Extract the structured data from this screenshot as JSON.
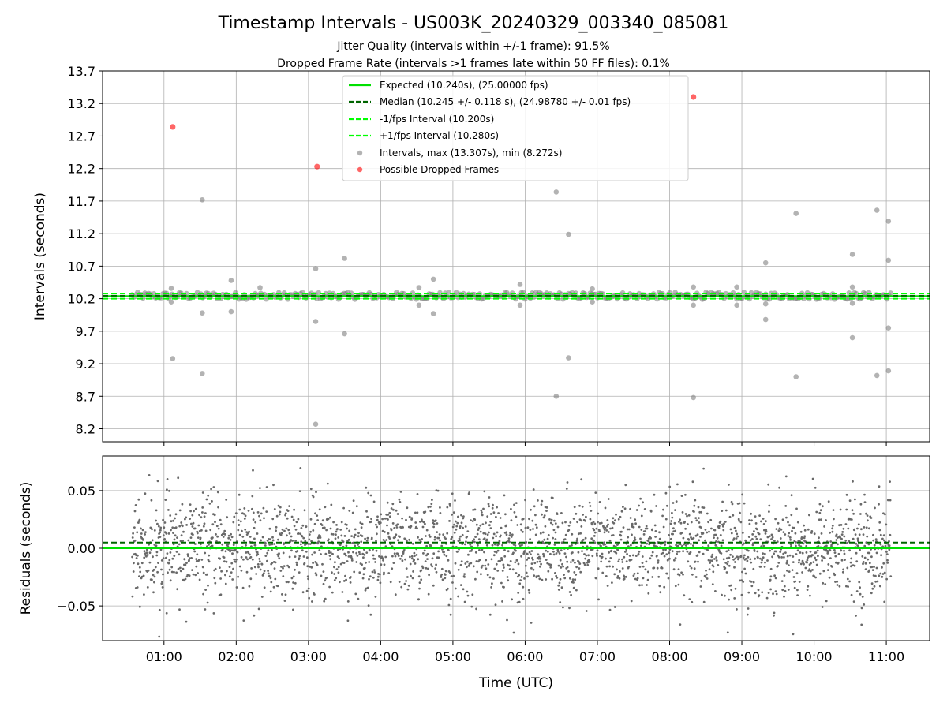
{
  "chart_data": [
    {
      "type": "scatter",
      "title": "Timestamp Intervals - US003K_20240329_003340_085081",
      "subtitle_lines": [
        "Jitter Quality (intervals within +/-1 frame): 91.5%",
        "Dropped Frame Rate (intervals >1 frames late within 50 FF files): 0.1%"
      ],
      "xlabel": "",
      "ylabel": "Intervals (seconds)",
      "xlim_hours": [
        0.15,
        11.6
      ],
      "ylim": [
        8.0,
        13.7
      ],
      "yticks": [
        "8.2",
        "8.7",
        "9.2",
        "9.7",
        "10.2",
        "10.7",
        "11.2",
        "11.7",
        "12.2",
        "12.7",
        "13.2",
        "13.7"
      ],
      "grid": true,
      "legend_position": "top-center",
      "legend": [
        "Expected (10.240s), (25.00000 fps)",
        "Median (10.245 +/- 0.118 s), (24.98780 +/- 0.01 fps)",
        "-1/fps Interval (10.200s)",
        "+1/fps Interval (10.280s)",
        "Intervals, max (13.307s), min (8.272s)",
        "Possible Dropped Frames"
      ],
      "reference_lines": {
        "expected": 10.24,
        "median": 10.245,
        "minus_one_fps": 10.2,
        "plus_one_fps": 10.28
      },
      "interval_range": {
        "start_hours": 0.56,
        "end_hours": 11.06,
        "typical_min": 10.19,
        "typical_max": 10.3
      },
      "outliers": [
        {
          "t": 1.1,
          "v": 10.36
        },
        {
          "t": 1.1,
          "v": 10.15
        },
        {
          "t": 1.12,
          "v": 9.28
        },
        {
          "t": 1.53,
          "v": 11.72
        },
        {
          "t": 1.53,
          "v": 9.98
        },
        {
          "t": 1.53,
          "v": 9.05
        },
        {
          "t": 1.93,
          "v": 10.48
        },
        {
          "t": 1.93,
          "v": 10.0
        },
        {
          "t": 2.33,
          "v": 10.37
        },
        {
          "t": 3.1,
          "v": 10.66
        },
        {
          "t": 3.1,
          "v": 9.85
        },
        {
          "t": 3.1,
          "v": 8.27
        },
        {
          "t": 3.5,
          "v": 10.82
        },
        {
          "t": 3.5,
          "v": 9.66
        },
        {
          "t": 4.53,
          "v": 10.37
        },
        {
          "t": 4.53,
          "v": 10.1
        },
        {
          "t": 4.73,
          "v": 10.5
        },
        {
          "t": 4.73,
          "v": 9.97
        },
        {
          "t": 5.93,
          "v": 10.42
        },
        {
          "t": 5.93,
          "v": 10.1
        },
        {
          "t": 6.43,
          "v": 11.84
        },
        {
          "t": 6.43,
          "v": 8.7
        },
        {
          "t": 6.6,
          "v": 11.19
        },
        {
          "t": 6.6,
          "v": 9.29
        },
        {
          "t": 6.93,
          "v": 10.35
        },
        {
          "t": 6.93,
          "v": 10.15
        },
        {
          "t": 8.33,
          "v": 10.38
        },
        {
          "t": 8.33,
          "v": 10.1
        },
        {
          "t": 8.33,
          "v": 8.68
        },
        {
          "t": 8.93,
          "v": 10.38
        },
        {
          "t": 8.93,
          "v": 10.1
        },
        {
          "t": 9.33,
          "v": 10.75
        },
        {
          "t": 9.33,
          "v": 10.12
        },
        {
          "t": 9.33,
          "v": 9.88
        },
        {
          "t": 9.75,
          "v": 11.51
        },
        {
          "t": 9.75,
          "v": 9.0
        },
        {
          "t": 10.53,
          "v": 10.88
        },
        {
          "t": 10.53,
          "v": 10.38
        },
        {
          "t": 10.53,
          "v": 10.13
        },
        {
          "t": 10.53,
          "v": 9.6
        },
        {
          "t": 10.87,
          "v": 11.56
        },
        {
          "t": 10.87,
          "v": 9.02
        },
        {
          "t": 11.03,
          "v": 11.39
        },
        {
          "t": 11.03,
          "v": 10.79
        },
        {
          "t": 11.03,
          "v": 9.75
        },
        {
          "t": 11.03,
          "v": 9.09
        }
      ],
      "dropped_frames": [
        {
          "t": 1.12,
          "v": 12.84
        },
        {
          "t": 3.12,
          "v": 12.23
        },
        {
          "t": 8.33,
          "v": 13.3
        }
      ],
      "colors": {
        "expected": "#00e000",
        "median": "#006400",
        "fps_bounds": "#00ff00",
        "intervals": "#808080",
        "dropped": "#ff0000"
      }
    },
    {
      "type": "scatter",
      "xlabel": "Time (UTC)",
      "ylabel": "Residuals (seconds)",
      "xlim_hours": [
        0.15,
        11.6
      ],
      "ylim": [
        -0.08,
        0.08
      ],
      "yticks": [
        "−0.05",
        "0.00",
        "0.05"
      ],
      "ytick_values": [
        -0.05,
        0.0,
        0.05
      ],
      "xticks": [
        "01:00",
        "02:00",
        "03:00",
        "04:00",
        "05:00",
        "06:00",
        "07:00",
        "08:00",
        "09:00",
        "10:00",
        "11:00"
      ],
      "xtick_hours": [
        1,
        2,
        3,
        4,
        5,
        6,
        7,
        8,
        9,
        10,
        11
      ],
      "grid": true,
      "reference_lines": {
        "zero": 0.0,
        "median_offset": 0.005
      },
      "residual_spread": {
        "typical_sd": 0.022,
        "min": -0.078,
        "max": 0.074,
        "start_hours": 0.56,
        "end_hours": 11.06
      },
      "colors": {
        "points": "#696969",
        "zero": "#00e000",
        "median": "#006400"
      }
    }
  ]
}
